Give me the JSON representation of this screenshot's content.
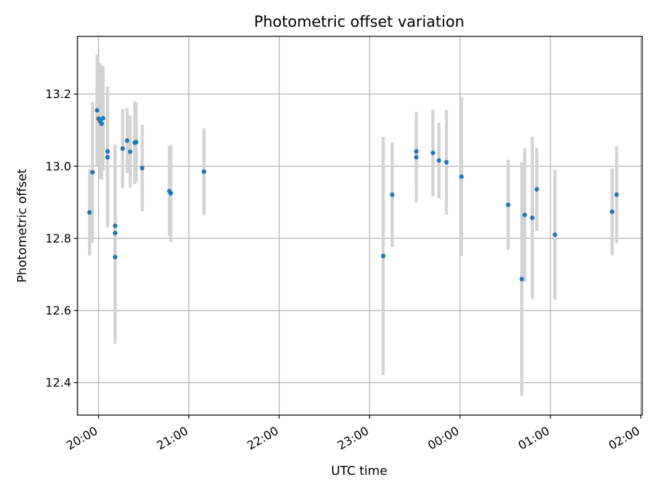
{
  "chart_data": {
    "type": "scatter",
    "title": "Photometric offset variation",
    "xlabel": "UTC time",
    "ylabel": "Photometric offset",
    "x_unit": "time of day (UTC), points after midnight continue on the next day",
    "xlim": [
      "19:46",
      "02:01"
    ],
    "ylim": [
      12.31,
      13.36
    ],
    "x_ticks": [
      "20:00",
      "21:00",
      "22:00",
      "23:00",
      "00:00",
      "01:00",
      "02:00"
    ],
    "y_ticks": [
      "12.4",
      "12.6",
      "12.8",
      "13.0",
      "13.2"
    ],
    "grid": true,
    "colors": {
      "marker": "#1f77b4",
      "errorbar": "#d3d3d3",
      "grid": "#b0b0b0"
    },
    "series": [
      {
        "points": [
          {
            "x": "19:54",
            "y": 12.872,
            "err": 0.12
          },
          {
            "x": "19:56",
            "y": 12.983,
            "err": 0.195
          },
          {
            "x": "19:59",
            "y": 13.155,
            "err": 0.155
          },
          {
            "x": "20:00",
            "y": 13.132,
            "err": 0.12
          },
          {
            "x": "20:01",
            "y": 13.125,
            "err": 0.16
          },
          {
            "x": "20:02",
            "y": 13.118,
            "err": 0.155
          },
          {
            "x": "20:03",
            "y": 13.133,
            "err": 0.145
          },
          {
            "x": "20:06",
            "y": 13.041,
            "err": 0.18
          },
          {
            "x": "20:06",
            "y": 13.025,
            "err": 0.195
          },
          {
            "x": "20:11",
            "y": 12.835,
            "err": 0.225
          },
          {
            "x": "20:11",
            "y": 12.815,
            "err": 0.2
          },
          {
            "x": "20:11",
            "y": 12.748,
            "err": 0.24
          },
          {
            "x": "20:16",
            "y": 13.049,
            "err": 0.11
          },
          {
            "x": "20:19",
            "y": 13.071,
            "err": 0.09
          },
          {
            "x": "20:21",
            "y": 13.04,
            "err": 0.1
          },
          {
            "x": "20:24",
            "y": 13.065,
            "err": 0.115
          },
          {
            "x": "20:25",
            "y": 13.067,
            "err": 0.11
          },
          {
            "x": "20:29",
            "y": 12.995,
            "err": 0.12
          },
          {
            "x": "20:47",
            "y": 12.931,
            "err": 0.125
          },
          {
            "x": "20:48",
            "y": 12.925,
            "err": 0.135
          },
          {
            "x": "21:10",
            "y": 12.985,
            "err": 0.12
          },
          {
            "x": "23:09",
            "y": 12.751,
            "err": 0.33
          },
          {
            "x": "23:15",
            "y": 12.921,
            "err": 0.145
          },
          {
            "x": "23:31",
            "y": 13.041,
            "err": 0.11
          },
          {
            "x": "23:31",
            "y": 13.025,
            "err": 0.125
          },
          {
            "x": "23:42",
            "y": 13.037,
            "err": 0.12
          },
          {
            "x": "23:46",
            "y": 13.016,
            "err": 0.105
          },
          {
            "x": "23:51",
            "y": 13.011,
            "err": 0.145
          },
          {
            "x": "00:01",
            "y": 12.971,
            "err": 0.22
          },
          {
            "x": "00:32",
            "y": 12.893,
            "err": 0.125
          },
          {
            "x": "00:41",
            "y": 12.687,
            "err": 0.325
          },
          {
            "x": "00:43",
            "y": 12.865,
            "err": 0.185
          },
          {
            "x": "00:48",
            "y": 12.857,
            "err": 0.225
          },
          {
            "x": "00:51",
            "y": 12.936,
            "err": 0.115
          },
          {
            "x": "01:03",
            "y": 12.81,
            "err": 0.18
          },
          {
            "x": "01:41",
            "y": 12.874,
            "err": 0.12
          },
          {
            "x": "01:44",
            "y": 12.921,
            "err": 0.135
          }
        ]
      }
    ]
  }
}
